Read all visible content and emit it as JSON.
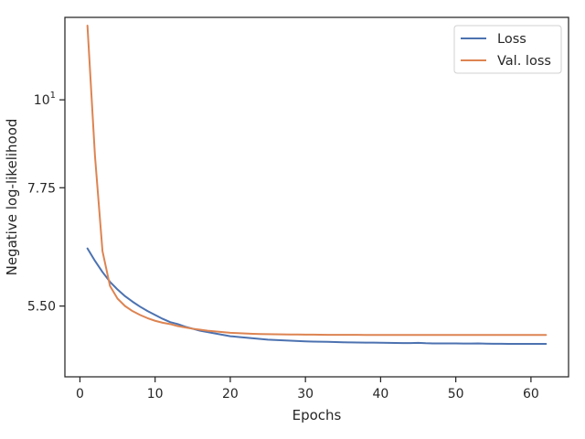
{
  "chart_data": {
    "type": "line",
    "xlabel": "Epochs",
    "ylabel": "Negative log-likelihood",
    "y_scale": "log",
    "xlim": [
      -2,
      65
    ],
    "ylim": [
      4.48,
      12.7
    ],
    "x_ticks": [
      0,
      10,
      20,
      30,
      40,
      50,
      60
    ],
    "y_ticks": [
      {
        "value": 10,
        "label": "10",
        "sup": "1"
      },
      {
        "value": 7.75,
        "label": "7.75",
        "sup": ""
      },
      {
        "value": 5.5,
        "label": "5.50",
        "sup": ""
      }
    ],
    "legend_position": "top-right",
    "grid": false,
    "series": [
      {
        "name": "Loss",
        "color": "#4c72b0",
        "x": [
          1,
          2,
          3,
          4,
          5,
          6,
          7,
          8,
          9,
          10,
          11,
          12,
          13,
          14,
          15,
          16,
          17,
          18,
          19,
          20,
          21,
          22,
          23,
          24,
          25,
          26,
          27,
          28,
          29,
          30,
          31,
          32,
          33,
          34,
          35,
          36,
          37,
          38,
          39,
          40,
          41,
          42,
          43,
          44,
          45,
          46,
          47,
          48,
          49,
          50,
          51,
          52,
          53,
          54,
          55,
          56,
          57,
          58,
          59,
          60,
          61,
          62
        ],
        "values": [
          6.5,
          6.27,
          6.07,
          5.9,
          5.77,
          5.66,
          5.57,
          5.49,
          5.42,
          5.36,
          5.3,
          5.25,
          5.22,
          5.18,
          5.15,
          5.12,
          5.1,
          5.08,
          5.06,
          5.04,
          5.03,
          5.02,
          5.01,
          5.0,
          4.99,
          4.985,
          4.98,
          4.975,
          4.97,
          4.965,
          4.962,
          4.96,
          4.958,
          4.955,
          4.952,
          4.95,
          4.948,
          4.947,
          4.946,
          4.945,
          4.943,
          4.941,
          4.94,
          4.94,
          4.944,
          4.938,
          4.936,
          4.935,
          4.936,
          4.935,
          4.934,
          4.933,
          4.935,
          4.932,
          4.93,
          4.93,
          4.929,
          4.929,
          4.929,
          4.928,
          4.928,
          4.928
        ]
      },
      {
        "name": "Val. loss",
        "color": "#dd8452",
        "x": [
          1,
          2,
          3,
          4,
          5,
          6,
          7,
          8,
          9,
          10,
          11,
          12,
          13,
          14,
          15,
          16,
          17,
          18,
          19,
          20,
          21,
          22,
          23,
          24,
          25,
          26,
          27,
          28,
          29,
          30,
          31,
          32,
          33,
          34,
          35,
          36,
          37,
          38,
          39,
          40,
          41,
          42,
          43,
          44,
          45,
          46,
          47,
          48,
          49,
          50,
          51,
          52,
          53,
          54,
          55,
          56,
          57,
          58,
          59,
          60,
          61,
          62
        ],
        "values": [
          12.4,
          8.5,
          6.45,
          5.83,
          5.62,
          5.5,
          5.42,
          5.36,
          5.31,
          5.27,
          5.24,
          5.22,
          5.19,
          5.17,
          5.15,
          5.135,
          5.12,
          5.11,
          5.1,
          5.09,
          5.085,
          5.08,
          5.075,
          5.072,
          5.07,
          5.068,
          5.066,
          5.065,
          5.064,
          5.063,
          5.062,
          5.061,
          5.06,
          5.06,
          5.06,
          5.059,
          5.059,
          5.058,
          5.058,
          5.058,
          5.057,
          5.057,
          5.057,
          5.057,
          5.058,
          5.058,
          5.058,
          5.058,
          5.058,
          5.058,
          5.058,
          5.058,
          5.058,
          5.058,
          5.058,
          5.058,
          5.058,
          5.058,
          5.058,
          5.058,
          5.058,
          5.058
        ]
      }
    ]
  }
}
